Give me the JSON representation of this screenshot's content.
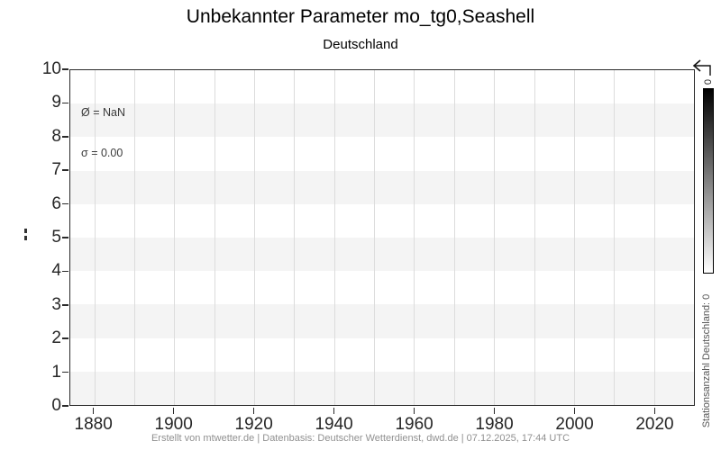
{
  "header": {
    "title": "Unbekannter Parameter mo_tg0,Seashell",
    "subtitle": "Deutschland"
  },
  "plot": {
    "annotation": {
      "mean_line": "Ø = NaN",
      "std_line": "σ = 0.00"
    }
  },
  "colorbar": {
    "top_tick_label": "0",
    "label": "Stationsanzahl Deutschland: 0",
    "gradient_top_color": "#000000",
    "gradient_bottom_color": "#ffffff"
  },
  "footer": {
    "credit": "Erstellt von mtwetter.de | Datenbasis: Deutscher Wetterdienst, dwd.de | 07.12.2025, 17:44 UTC"
  },
  "chart_data": {
    "type": "line",
    "title": "Unbekannter Parameter mo_tg0,Seashell",
    "subtitle": "Deutschland",
    "xlabel": "",
    "ylabel": "",
    "x": [],
    "series": [],
    "xlim": [
      1874,
      2030
    ],
    "ylim": [
      0,
      10
    ],
    "x_ticks": [
      1880,
      1900,
      1920,
      1940,
      1960,
      1980,
      2000,
      2020
    ],
    "y_ticks": [
      0,
      1,
      2,
      3,
      4,
      5,
      6,
      7,
      8,
      9,
      10
    ],
    "x_gridline_step": 10,
    "grid": true,
    "band_fill_color": "#f4f4f4",
    "gridline_color": "#dcdcdc",
    "legend_position": "none",
    "stats": {
      "mean": "NaN",
      "std": "0.00"
    },
    "colorbar": {
      "label": "Stationsanzahl Deutschland: 0",
      "ticks": [
        "0"
      ],
      "style": "black-to-white vertical gradient"
    }
  }
}
